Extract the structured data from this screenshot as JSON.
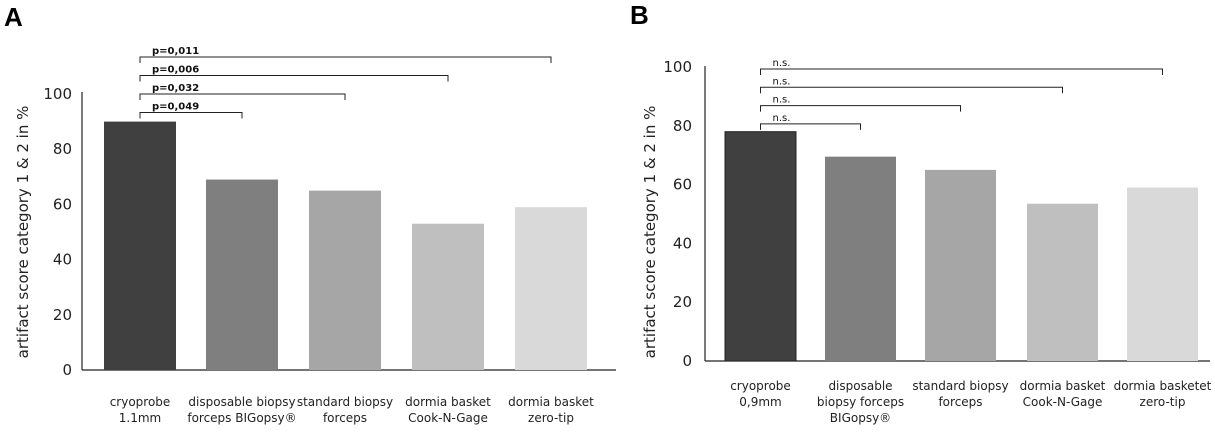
{
  "chart_data": [
    {
      "panel": "A",
      "type": "bar",
      "ylabel": "artifact score category 1 & 2 in %",
      "ylim": [
        0,
        100
      ],
      "yticks": [
        0,
        20,
        40,
        60,
        80,
        100
      ],
      "categories": [
        [
          "cryoprobe",
          "1.1mm"
        ],
        [
          "disposable biopsy",
          "forceps BIGopsy®"
        ],
        [
          "standard biopsy",
          "forceps"
        ],
        [
          "dormia basket",
          "Cook-N-Gage"
        ],
        [
          "dormia basket",
          "zero-tip"
        ]
      ],
      "values": [
        90,
        69,
        65,
        53,
        59
      ],
      "colors": [
        "#404040",
        "#7f7f7f",
        "#a6a6a6",
        "#bfbfbf",
        "#d9d9d9"
      ],
      "comparisons": [
        {
          "from": 0,
          "to": 4,
          "label": "p=0,011"
        },
        {
          "from": 0,
          "to": 3,
          "label": "p=0,006"
        },
        {
          "from": 0,
          "to": 2,
          "label": "p=0,032"
        },
        {
          "from": 0,
          "to": 1,
          "label": "p=0,049"
        }
      ]
    },
    {
      "panel": "B",
      "type": "bar",
      "ylabel": "artifact score category 1 & 2 in %",
      "ylim": [
        0,
        100
      ],
      "yticks": [
        0,
        20,
        40,
        60,
        80,
        100
      ],
      "categories": [
        [
          "cryoprobe",
          "0,9mm"
        ],
        [
          "disposable",
          "biopsy forceps",
          "BIGopsy®"
        ],
        [
          "standard biopsy",
          "forceps"
        ],
        [
          "dormia basket",
          "Cook-N-Gage"
        ],
        [
          "dormia basketet",
          "zero-tip"
        ]
      ],
      "values": [
        78,
        69.5,
        65,
        53.5,
        59
      ],
      "colors": [
        "#404040",
        "#7f7f7f",
        "#a6a6a6",
        "#bfbfbf",
        "#d9d9d9"
      ],
      "comparisons": [
        {
          "from": 0,
          "to": 4,
          "label": "n.s."
        },
        {
          "from": 0,
          "to": 3,
          "label": "n.s."
        },
        {
          "from": 0,
          "to": 2,
          "label": "n.s."
        },
        {
          "from": 0,
          "to": 1,
          "label": "n.s."
        }
      ]
    }
  ]
}
